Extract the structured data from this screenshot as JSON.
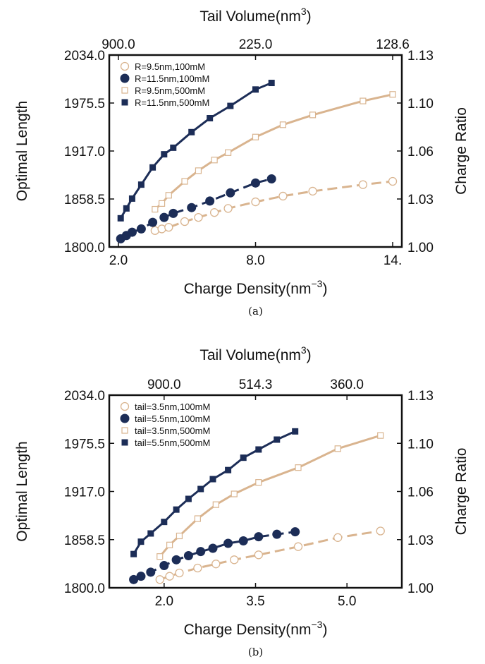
{
  "chart_data": [
    {
      "type": "line",
      "caption": "(a)",
      "xlabel": "Charge Density(nm−3)",
      "xlabel_main": "Charge Density(nm",
      "xlabel_sup": "−3",
      "xlabel_end": ")",
      "x2label_main": "Tail Volume(nm",
      "x2label_sup": "3",
      "x2label_end": ")",
      "ylabel": "Optimal Length",
      "y2label": "Charge Ratio",
      "xlim": [
        1.6,
        14.4
      ],
      "ylim": [
        1800.0,
        2034.0
      ],
      "x_ticks": [
        2.0,
        8.0,
        14.0
      ],
      "x_tick_labels": [
        "2.0",
        "8.0",
        "14."
      ],
      "x2_ticks": [
        2.0,
        8.0,
        14.0
      ],
      "x2_tick_labels": [
        "900.0",
        "225.0",
        "128.6"
      ],
      "y_ticks": [
        1800.0,
        1858.5,
        1917.0,
        1975.5,
        2034.0
      ],
      "y_tick_labels": [
        "1800.0",
        "1858.5",
        "1917.0",
        "1975.5",
        "2034.0"
      ],
      "y2_ticks": [
        1800.0,
        1858.5,
        1917.0,
        1975.5,
        2034.0
      ],
      "y2_tick_labels": [
        "1.00",
        "1.03",
        "1.06",
        "1.10",
        "1.13"
      ],
      "legend_position": "top-left",
      "series": [
        {
          "name": "R=9.5nm,100mM",
          "marker": "circle-open",
          "dash": true,
          "color": "#d9b48f",
          "x": [
            3.6,
            3.9,
            4.2,
            4.9,
            5.5,
            6.2,
            6.8,
            8.0,
            9.2,
            10.5,
            12.7,
            14.0
          ],
          "y": [
            1820,
            1822,
            1824,
            1831,
            1836,
            1842,
            1847,
            1855,
            1862,
            1868,
            1876,
            1880
          ]
        },
        {
          "name": "R=11.5nm,100mM",
          "marker": "circle-filled",
          "dash": true,
          "color": "#1c2d57",
          "x": [
            2.1,
            2.35,
            2.6,
            3.0,
            3.5,
            4.0,
            4.4,
            5.2,
            6.0,
            6.9,
            8.0,
            8.7
          ],
          "y": [
            1810,
            1814,
            1818,
            1822,
            1830,
            1836,
            1841,
            1848,
            1856,
            1866,
            1878,
            1883
          ]
        },
        {
          "name": "R=9.5nm,500mM",
          "marker": "square-open",
          "dash": false,
          "color": "#d9b48f",
          "x": [
            3.6,
            3.9,
            4.2,
            4.9,
            5.5,
            6.2,
            6.8,
            8.0,
            9.2,
            10.5,
            12.7,
            14.0
          ],
          "y": [
            1846,
            1853,
            1863,
            1880,
            1893,
            1906,
            1915,
            1934,
            1949,
            1961,
            1978,
            1986
          ]
        },
        {
          "name": "R=11.5nm,500mM",
          "marker": "square-filled",
          "dash": false,
          "color": "#1c2d57",
          "x": [
            2.1,
            2.35,
            2.6,
            3.0,
            3.5,
            4.0,
            4.4,
            5.2,
            6.0,
            6.9,
            8.0,
            8.7
          ],
          "y": [
            1835,
            1847,
            1859,
            1876,
            1897,
            1913,
            1921,
            1940,
            1957,
            1972,
            1992,
            2000
          ]
        }
      ]
    },
    {
      "type": "line",
      "caption": "(b)",
      "xlabel": "Charge Density(nm−3)",
      "xlabel_main": "Charge Density(nm",
      "xlabel_sup": "−3",
      "xlabel_end": ")",
      "x2label_main": "Tail Volume(nm",
      "x2label_sup": "3",
      "x2label_end": ")",
      "ylabel": "Optimal Length",
      "y2label": "Charge Ratio",
      "xlim": [
        1.1,
        5.9
      ],
      "ylim": [
        1800.0,
        2034.0
      ],
      "x_ticks": [
        2.0,
        3.5,
        5.0
      ],
      "x_tick_labels": [
        "2.0",
        "3.5",
        "5.0"
      ],
      "x2_ticks": [
        2.0,
        3.5,
        5.0
      ],
      "x2_tick_labels": [
        "900.0",
        "514.3",
        "360.0"
      ],
      "y_ticks": [
        1800.0,
        1858.5,
        1917.0,
        1975.5,
        2034.0
      ],
      "y_tick_labels": [
        "1800.0",
        "1858.5",
        "1917.0",
        "1975.5",
        "2034.0"
      ],
      "y2_ticks": [
        1800.0,
        1858.5,
        1917.0,
        1975.5,
        2034.0
      ],
      "y2_tick_labels": [
        "1.00",
        "1.03",
        "1.06",
        "1.10",
        "1.13"
      ],
      "legend_position": "top-left",
      "series": [
        {
          "name": "tail=3.5nm,100mM",
          "marker": "circle-open",
          "dash": true,
          "color": "#d9b48f",
          "x": [
            1.93,
            2.09,
            2.25,
            2.55,
            2.85,
            3.15,
            3.55,
            4.2,
            4.85,
            5.55
          ],
          "y": [
            1810,
            1814,
            1818,
            1824,
            1829,
            1834,
            1840,
            1850,
            1861,
            1869
          ]
        },
        {
          "name": "tail=5.5nm,100mM",
          "marker": "circle-filled",
          "dash": true,
          "color": "#1c2d57",
          "x": [
            1.5,
            1.62,
            1.78,
            2.0,
            2.2,
            2.4,
            2.6,
            2.8,
            3.05,
            3.3,
            3.55,
            3.85,
            4.15
          ],
          "y": [
            1810,
            1814,
            1819,
            1827,
            1834,
            1839,
            1844,
            1848,
            1854,
            1857,
            1862,
            1865,
            1868
          ]
        },
        {
          "name": "tail=3.5nm,500mM",
          "marker": "square-open",
          "dash": false,
          "color": "#d9b48f",
          "x": [
            1.93,
            2.09,
            2.25,
            2.55,
            2.85,
            3.15,
            3.55,
            4.2,
            4.85,
            5.55
          ],
          "y": [
            1838,
            1852,
            1863,
            1884,
            1901,
            1914,
            1928,
            1946,
            1969,
            1985
          ]
        },
        {
          "name": "tail=5.5nm,500mM",
          "marker": "square-filled",
          "dash": false,
          "color": "#1c2d57",
          "x": [
            1.5,
            1.62,
            1.78,
            2.0,
            2.2,
            2.4,
            2.6,
            2.8,
            3.05,
            3.3,
            3.55,
            3.85,
            4.15
          ],
          "y": [
            1841,
            1856,
            1866,
            1880,
            1895,
            1908,
            1920,
            1932,
            1943,
            1958,
            1968,
            1980,
            1990
          ]
        }
      ]
    }
  ]
}
